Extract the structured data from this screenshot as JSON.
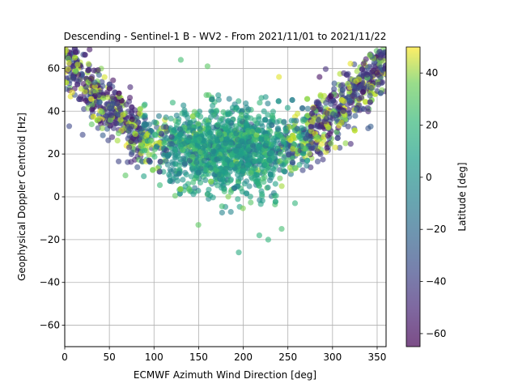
{
  "chart_data": {
    "type": "scatter",
    "title": "Descending - Sentinel-1 B - WV2 - From 2021/11/01 to 2021/11/22",
    "xlabel": "ECMWF Azimuth Wind Direction [deg]",
    "ylabel": "Geophysical Doppler Centroid [Hz]",
    "xlim": [
      0,
      360
    ],
    "ylim": [
      -70,
      70
    ],
    "xticks": [
      0,
      50,
      100,
      150,
      200,
      250,
      300,
      350
    ],
    "yticks": [
      -60,
      -40,
      -20,
      0,
      20,
      40,
      60
    ],
    "grid": true,
    "point_alpha": 0.6,
    "colorbar": {
      "label": "Latitude [deg]",
      "range": [
        -65,
        50
      ],
      "ticks": [
        -60,
        -40,
        -20,
        0,
        20,
        40
      ],
      "colormap": "viridis"
    },
    "distribution": {
      "description_values": "Dense point cloud forming a U shape: centroid near 20-30 Hz for directions 100-250 deg, rising to 55-65 Hz near 0 and 360 deg; high |latitude| points concentrated at the U arms.",
      "center_direction_deg": 180,
      "min_doppler_hz": -26,
      "max_doppler_hz": 70
    },
    "sample_points": [
      {
        "x": 195,
        "y": -26,
        "lat": 5
      },
      {
        "x": 218,
        "y": -18,
        "lat": 10
      },
      {
        "x": 228,
        "y": -20,
        "lat": 10
      },
      {
        "x": 243,
        "y": -15,
        "lat": 15
      },
      {
        "x": 68,
        "y": 10,
        "lat": 20
      },
      {
        "x": 20,
        "y": 29,
        "lat": -40
      },
      {
        "x": 5,
        "y": 33,
        "lat": -40
      },
      {
        "x": 340,
        "y": 32,
        "lat": -35
      },
      {
        "x": 130,
        "y": 64,
        "lat": 15
      },
      {
        "x": 160,
        "y": 61,
        "lat": 20
      },
      {
        "x": 258,
        "y": -3,
        "lat": 10
      },
      {
        "x": 240,
        "y": 56,
        "lat": 45
      }
    ]
  }
}
